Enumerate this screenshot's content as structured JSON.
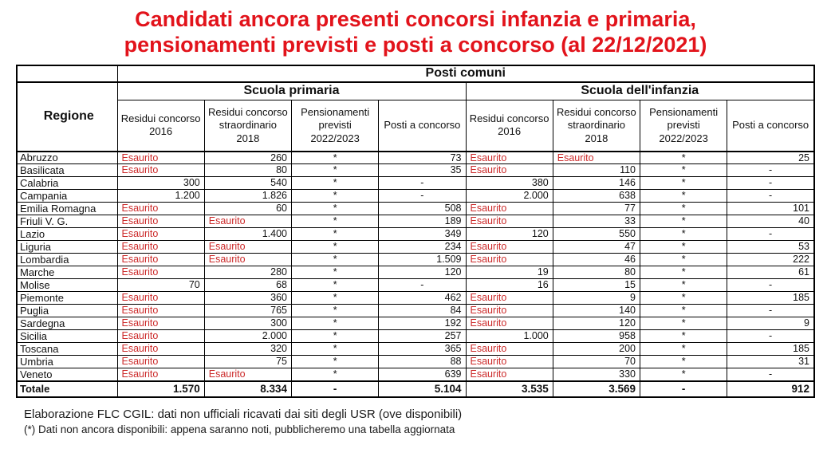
{
  "title": {
    "line1": "Candidati ancora presenti concorsi infanzia e primaria,",
    "line2": "pensionamenti previsti e posti a concorso (al 22/12/2021)"
  },
  "colors": {
    "title_red": "#e2131b",
    "esaurito_red": "#cc2a2a",
    "border_black": "#000000"
  },
  "table": {
    "top_header": "Posti comuni",
    "group_headers": [
      "Scuola primaria",
      "Scuola dell'infanzia"
    ],
    "region_header": "Regione",
    "columns": [
      "Residui concorso 2016",
      "Residui concorso straordinario 2018",
      "Pensionamenti previsti 2022/2023",
      "Posti a concorso"
    ],
    "rows": [
      {
        "region": "Abruzzo",
        "cells": [
          "Esaurito",
          "260",
          "*",
          "73",
          "Esaurito",
          "Esaurito",
          "*",
          "25"
        ]
      },
      {
        "region": "Basilicata",
        "cells": [
          "Esaurito",
          "80",
          "*",
          "35",
          "Esaurito",
          "110",
          "*",
          "-"
        ]
      },
      {
        "region": "Calabria",
        "cells": [
          "300",
          "540",
          "*",
          "-",
          "380",
          "146",
          "*",
          "-"
        ]
      },
      {
        "region": "Campania",
        "cells": [
          "1.200",
          "1.826",
          "*",
          "-",
          "2.000",
          "638",
          "*",
          "-"
        ]
      },
      {
        "region": "Emilia Romagna",
        "cells": [
          "Esaurito",
          "60",
          "*",
          "508",
          "Esaurito",
          "77",
          "*",
          "101"
        ]
      },
      {
        "region": "Friuli V. G.",
        "cells": [
          "Esaurito",
          "Esaurito",
          "*",
          "189",
          "Esaurito",
          "33",
          "*",
          "40"
        ]
      },
      {
        "region": "Lazio",
        "cells": [
          "Esaurito",
          "1.400",
          "*",
          "349",
          "120",
          "550",
          "*",
          "-"
        ]
      },
      {
        "region": "Liguria",
        "cells": [
          "Esaurito",
          "Esaurito",
          "*",
          "234",
          "Esaurito",
          "47",
          "*",
          "53"
        ]
      },
      {
        "region": "Lombardia",
        "cells": [
          "Esaurito",
          "Esaurito",
          "*",
          "1.509",
          "Esaurito",
          "46",
          "*",
          "222"
        ]
      },
      {
        "region": "Marche",
        "cells": [
          "Esaurito",
          "280",
          "*",
          "120",
          "19",
          "80",
          "*",
          "61"
        ]
      },
      {
        "region": "Molise",
        "cells": [
          "70",
          "68",
          "*",
          "-",
          "16",
          "15",
          "*",
          "-"
        ]
      },
      {
        "region": "Piemonte",
        "cells": [
          "Esaurito",
          "360",
          "*",
          "462",
          "Esaurito",
          "9",
          "*",
          "185"
        ]
      },
      {
        "region": "Puglia",
        "cells": [
          "Esaurito",
          "765",
          "*",
          "84",
          "Esaurito",
          "140",
          "*",
          "-"
        ]
      },
      {
        "region": "Sardegna",
        "cells": [
          "Esaurito",
          "300",
          "*",
          "192",
          "Esaurito",
          "120",
          "*",
          "9"
        ]
      },
      {
        "region": "Sicilia",
        "cells": [
          "Esaurito",
          "2.000",
          "*",
          "257",
          "1.000",
          "958",
          "*",
          "-"
        ]
      },
      {
        "region": "Toscana",
        "cells": [
          "Esaurito",
          "320",
          "*",
          "365",
          "Esaurito",
          "200",
          "*",
          "185"
        ]
      },
      {
        "region": "Umbria",
        "cells": [
          "Esaurito",
          "75",
          "*",
          "88",
          "Esaurito",
          "70",
          "*",
          "31"
        ]
      },
      {
        "region": "Veneto",
        "cells": [
          "Esaurito",
          "Esaurito",
          "*",
          "639",
          "Esaurito",
          "330",
          "*",
          "-"
        ]
      }
    ],
    "total": {
      "label": "Totale",
      "cells": [
        "1.570",
        "8.334",
        "-",
        "5.104",
        "3.535",
        "3.569",
        "-",
        "912"
      ]
    }
  },
  "footnotes": [
    "Elaborazione FLC CGIL: dati non ufficiali ricavati dai siti degli USR (ove disponibili)",
    "(*) Dati non ancora disponibili: appena saranno noti, pubblicheremo una tabella aggiornata"
  ]
}
